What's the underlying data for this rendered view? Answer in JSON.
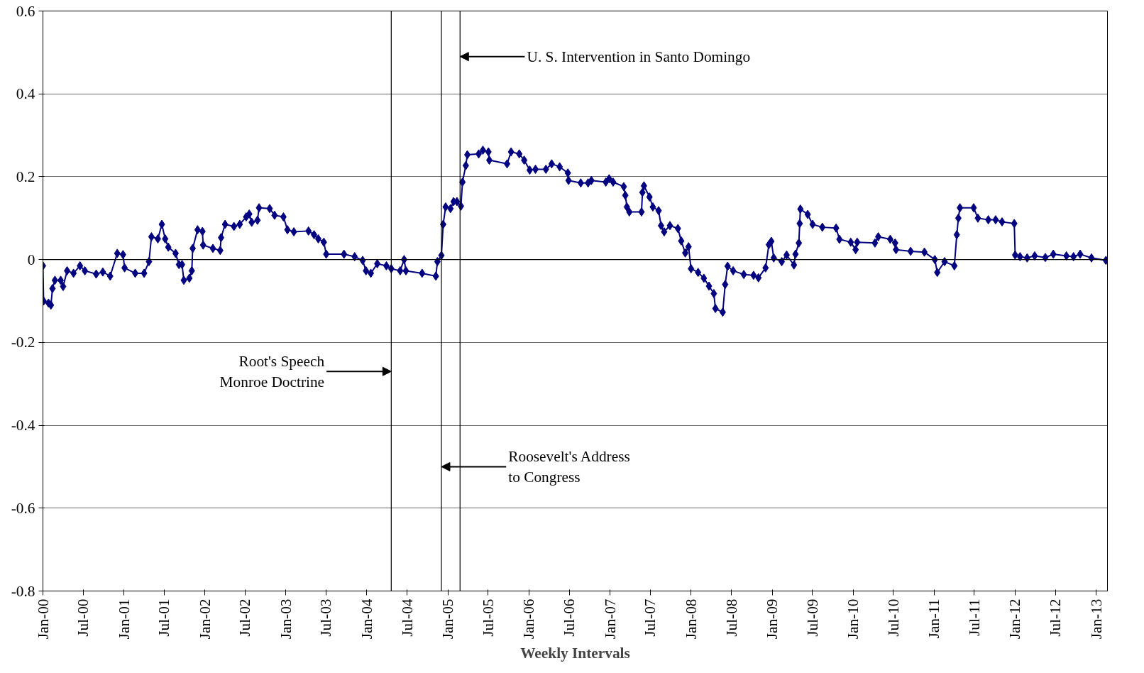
{
  "chart_data": {
    "type": "line",
    "xlabel": "Weekly Intervals",
    "x": [
      "1900-01-01",
      "1900-01-04",
      "1900-01-26",
      "1900-02-06",
      "1900-02-13",
      "1900-02-24",
      "1900-03-22",
      "1900-04-02",
      "1900-04-20",
      "1900-05-19",
      "1900-06-17",
      "1900-07-09",
      "1900-08-29",
      "1900-09-28",
      "1900-10-31",
      "1900-12-02",
      "1900-12-28",
      "1901-01-04",
      "1901-02-21",
      "1901-04-02",
      "1901-04-24",
      "1901-05-05",
      "1901-06-03",
      "1901-06-21",
      "1901-07-06",
      "1901-07-20",
      "1901-08-22",
      "1901-09-06",
      "1901-09-20",
      "1901-09-28",
      "1901-10-23",
      "1901-11-03",
      "1901-11-07",
      "1901-11-29",
      "1901-12-21",
      "1901-12-24",
      "1902-02-06",
      "1902-03-11",
      "1902-03-15",
      "1902-04-02",
      "1902-05-12",
      "1902-06-07",
      "1902-07-06",
      "1902-07-20",
      "1902-07-31",
      "1902-08-26",
      "1902-09-02",
      "1902-10-20",
      "1902-11-11",
      "1902-12-21",
      "1903-01-08",
      "1903-02-06",
      "1903-04-13",
      "1903-05-08",
      "1903-05-27",
      "1903-06-21",
      "1903-07-02",
      "1903-09-20",
      "1903-11-07",
      "1903-12-13",
      "1903-12-28",
      "1904-01-19",
      "1904-02-17",
      "1904-03-29",
      "1904-04-20",
      "1904-05-30",
      "1904-06-17",
      "1904-06-25",
      "1904-09-06",
      "1904-11-07",
      "1904-11-14",
      "1904-12-02",
      "1904-12-10",
      "1904-12-21",
      "1905-01-12",
      "1905-01-26",
      "1905-02-10",
      "1905-02-28",
      "1905-03-07",
      "1905-03-22",
      "1905-03-29",
      "1905-05-19",
      "1905-06-07",
      "1905-07-02",
      "1905-07-06",
      "1905-09-24",
      "1905-10-12",
      "1905-11-18",
      "1905-12-10",
      "1906-01-04",
      "1906-01-30",
      "1906-03-18",
      "1906-04-13",
      "1906-05-19",
      "1906-06-25",
      "1906-06-28",
      "1906-08-22",
      "1906-09-24",
      "1906-10-09",
      "1906-12-13",
      "1906-12-28",
      "1907-01-15",
      "1907-03-04",
      "1907-03-11",
      "1907-03-18",
      "1907-03-29",
      "1907-05-23",
      "1907-05-27",
      "1907-06-03",
      "1907-06-28",
      "1907-07-13",
      "1907-08-08",
      "1907-08-19",
      "1907-09-02",
      "1907-09-28",
      "1907-11-03",
      "1907-11-18",
      "1907-12-06",
      "1907-12-21",
      "1908-01-01",
      "1908-02-02",
      "1908-02-28",
      "1908-03-22",
      "1908-04-13",
      "1908-04-20",
      "1908-05-23",
      "1908-06-03",
      "1908-06-14",
      "1908-07-09",
      "1908-08-26",
      "1908-10-09",
      "1908-10-31",
      "1908-12-02",
      "1908-12-17",
      "1908-12-28",
      "1909-01-08",
      "1909-02-13",
      "1909-03-07",
      "1909-04-09",
      "1909-04-16",
      "1909-05-01",
      "1909-05-05",
      "1909-05-08",
      "1909-06-10",
      "1909-07-02",
      "1909-08-15",
      "1909-10-16",
      "1909-10-31",
      "1909-12-21",
      "1910-01-12",
      "1910-01-19",
      "1910-04-09",
      "1910-04-24",
      "1910-06-17",
      "1910-07-09",
      "1910-07-13",
      "1910-09-17",
      "1910-11-18",
      "1911-01-04",
      "1911-01-15",
      "1911-02-17",
      "1911-04-02",
      "1911-04-13",
      "1911-04-20",
      "1911-04-27",
      "1911-06-28",
      "1911-07-17",
      "1911-09-02",
      "1911-10-05",
      "1911-11-03",
      "1911-12-28",
      "1912-01-01",
      "1912-01-23",
      "1912-02-24",
      "1912-03-29",
      "1912-05-16",
      "1912-06-21",
      "1912-08-19",
      "1912-09-20",
      "1912-10-20",
      "1912-12-10",
      "1913-02-13"
    ],
    "series": [
      {
        "color": "#000080",
        "values": [
          -0.015,
          -0.1,
          -0.105,
          -0.11,
          -0.07,
          -0.05,
          -0.05,
          -0.065,
          -0.027,
          -0.033,
          -0.015,
          -0.027,
          -0.035,
          -0.03,
          -0.04,
          0.015,
          0.012,
          -0.02,
          -0.033,
          -0.033,
          -0.005,
          0.055,
          0.05,
          0.085,
          0.05,
          0.03,
          0.015,
          -0.012,
          -0.012,
          -0.05,
          -0.045,
          -0.027,
          0.027,
          0.072,
          0.068,
          0.035,
          0.027,
          0.022,
          0.053,
          0.085,
          0.08,
          0.085,
          0.103,
          0.11,
          0.09,
          0.095,
          0.125,
          0.123,
          0.107,
          0.103,
          0.072,
          0.067,
          0.069,
          0.06,
          0.05,
          0.042,
          0.013,
          0.013,
          0.007,
          -0.002,
          -0.027,
          -0.033,
          -0.01,
          -0.015,
          -0.022,
          -0.027,
          0,
          -0.027,
          -0.033,
          -0.04,
          -0.005,
          0.01,
          0.085,
          0.127,
          0.123,
          0.14,
          0.14,
          0.129,
          0.187,
          0.227,
          0.253,
          0.255,
          0.264,
          0.26,
          0.24,
          0.231,
          0.26,
          0.255,
          0.24,
          0.216,
          0.218,
          0.218,
          0.231,
          0.224,
          0.209,
          0.191,
          0.185,
          0.185,
          0.191,
          0.187,
          0.195,
          0.187,
          0.176,
          0.155,
          0.127,
          0.115,
          0.115,
          0.162,
          0.178,
          0.151,
          0.127,
          0.118,
          0.082,
          0.067,
          0.082,
          0.075,
          0.045,
          0.016,
          0.031,
          -0.022,
          -0.031,
          -0.045,
          -0.064,
          -0.082,
          -0.118,
          -0.127,
          -0.06,
          -0.016,
          -0.027,
          -0.036,
          -0.038,
          -0.044,
          -0.02,
          0.036,
          0.044,
          0.004,
          -0.005,
          0.011,
          -0.013,
          0.013,
          0.04,
          0.087,
          0.122,
          0.109,
          0.085,
          0.078,
          0.076,
          0.049,
          0.042,
          0.024,
          0.042,
          0.04,
          0.055,
          0.049,
          0.04,
          0.024,
          0.02,
          0.018,
          0,
          -0.031,
          -0.005,
          -0.015,
          0.06,
          0.1,
          0.125,
          0.125,
          0.1,
          0.096,
          0.096,
          0.091,
          0.087,
          0.011,
          0.007,
          0.004,
          0.009,
          0.005,
          0.013,
          0.009,
          0.007,
          0.013,
          0.004,
          -0.002
        ]
      }
    ],
    "marker": "diamond",
    "line_style": "solid",
    "grid": "y",
    "xlim": [
      "1900-01-01",
      "1913-02-20"
    ],
    "xticks": [
      {
        "value": "1900-01-01",
        "label": "Jan-00"
      },
      {
        "value": "1900-07-01",
        "label": "Jul-00"
      },
      {
        "value": "1901-01-01",
        "label": "Jan-01"
      },
      {
        "value": "1901-07-01",
        "label": "Jul-01"
      },
      {
        "value": "1902-01-01",
        "label": "Jan-02"
      },
      {
        "value": "1902-07-01",
        "label": "Jul-02"
      },
      {
        "value": "1903-01-01",
        "label": "Jan-03"
      },
      {
        "value": "1903-07-01",
        "label": "Jul-03"
      },
      {
        "value": "1904-01-01",
        "label": "Jan-04"
      },
      {
        "value": "1904-07-01",
        "label": "Jul-04"
      },
      {
        "value": "1905-01-01",
        "label": "Jan-05"
      },
      {
        "value": "1905-07-01",
        "label": "Jul-05"
      },
      {
        "value": "1906-01-01",
        "label": "Jan-06"
      },
      {
        "value": "1906-07-01",
        "label": "Jul-06"
      },
      {
        "value": "1907-01-01",
        "label": "Jan-07"
      },
      {
        "value": "1907-07-01",
        "label": "Jul-07"
      },
      {
        "value": "1908-01-01",
        "label": "Jan-08"
      },
      {
        "value": "1908-07-01",
        "label": "Jul-08"
      },
      {
        "value": "1909-01-01",
        "label": "Jan-09"
      },
      {
        "value": "1909-07-01",
        "label": "Jul-09"
      },
      {
        "value": "1910-01-01",
        "label": "Jan-10"
      },
      {
        "value": "1910-07-01",
        "label": "Jul-10"
      },
      {
        "value": "1911-01-01",
        "label": "Jan-11"
      },
      {
        "value": "1911-07-01",
        "label": "Jul-11"
      },
      {
        "value": "1912-01-01",
        "label": "Jan-12"
      },
      {
        "value": "1912-07-01",
        "label": "Jul-12"
      },
      {
        "value": "1913-01-01",
        "label": "Jan-13"
      }
    ],
    "ylim": [
      -0.8,
      0.6
    ],
    "yticks": [
      {
        "value": -0.8,
        "label": "-0.8"
      },
      {
        "value": -0.6,
        "label": "-0.6"
      },
      {
        "value": -0.4,
        "label": "-0.4"
      },
      {
        "value": -0.2,
        "label": "-0.2"
      },
      {
        "value": 0,
        "label": "0"
      },
      {
        "value": 0.2,
        "label": "0.2"
      },
      {
        "value": 0.4,
        "label": "0.4"
      },
      {
        "value": 0.6,
        "label": "0.6"
      }
    ],
    "ref_lines": [
      {
        "axis": "x",
        "value": "1904-04-20",
        "color": "#000000"
      },
      {
        "axis": "x",
        "value": "1904-12-02",
        "color": "#000000"
      },
      {
        "axis": "x",
        "value": "1905-02-24",
        "color": "#000000"
      },
      {
        "axis": "y",
        "value": 0,
        "color": "#000000"
      }
    ],
    "annotations": [
      {
        "text": "Root's Speech\nMonroe Doctrine",
        "x": "1904-04-20",
        "y": -0.27
      },
      {
        "text": "Roosevelt's Address\nto Congress",
        "x": "1904-12-02",
        "y": -0.5
      },
      {
        "text": "U. S. Intervention in Santo Domingo",
        "x": "1905-02-24",
        "y": 0.49
      }
    ]
  }
}
